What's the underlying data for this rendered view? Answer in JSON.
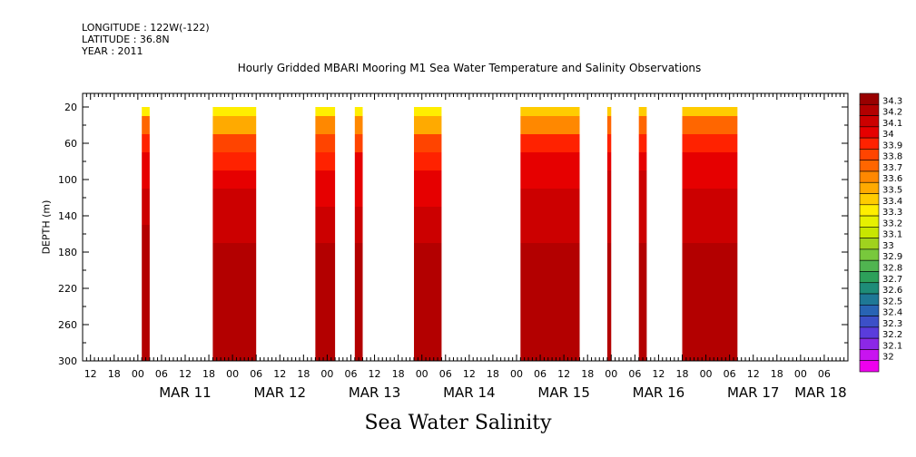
{
  "header": {
    "longitude": "LONGITUDE : 122W(-122)",
    "latitude": "LATITUDE : 36.8N",
    "year": "YEAR : 2011"
  },
  "footer": "Sea Water Salinity",
  "chart_data": {
    "type": "heatmap",
    "title": "Hourly Gridded MBARI Mooring M1 Sea Water Temperature and Salinity Observations",
    "xlabel": "",
    "ylabel": "DEPTH (m)",
    "xlim": [
      "2011-03-10T10:00",
      "2011-03-18T12:00"
    ],
    "ylim": [
      300,
      5
    ],
    "x_tick_labels": [
      "12",
      "18",
      "00",
      "06",
      "12",
      "18",
      "00",
      "06",
      "12",
      "18",
      "00",
      "06",
      "12",
      "18",
      "00",
      "06",
      "12",
      "18",
      "00",
      "06",
      "12",
      "18",
      "00",
      "06",
      "12",
      "18",
      "00",
      "06",
      "12",
      "18",
      "00",
      "06"
    ],
    "x_date_labels": [
      "MAR 11",
      "MAR 12",
      "MAR 13",
      "MAR 14",
      "MAR 15",
      "MAR 16",
      "MAR 17",
      "MAR 18"
    ],
    "y_tick_labels": [
      "20",
      "60",
      "100",
      "140",
      "180",
      "220",
      "260",
      "300"
    ],
    "colorbar": {
      "labels": [
        "34.3",
        "34.2",
        "34.1",
        "34",
        "33.9",
        "33.8",
        "33.7",
        "33.6",
        "33.5",
        "33.4",
        "33.3",
        "33.2",
        "33.1",
        "33",
        "32.9",
        "32.8",
        "32.7",
        "32.6",
        "32.5",
        "32.4",
        "32.3",
        "32.2",
        "32.1",
        "32"
      ],
      "colors": [
        "#990000",
        "#b30000",
        "#cc0000",
        "#e60000",
        "#ff2200",
        "#ff4400",
        "#ff6600",
        "#ff8800",
        "#ffaa00",
        "#ffcc00",
        "#ffee00",
        "#e6f000",
        "#c8e600",
        "#a0d21e",
        "#78c83c",
        "#50b450",
        "#2da05a",
        "#1e8c78",
        "#1e7896",
        "#2864b4",
        "#3c50c8",
        "#5a3cdc",
        "#8c28e6",
        "#c814f0",
        "#ee00ee"
      ]
    },
    "depths": [
      20,
      40,
      60,
      80,
      100,
      120,
      140,
      160,
      180,
      200,
      220,
      240,
      260,
      280,
      300
    ],
    "segments": [
      {
        "x_start": "2011-03-11T01:00",
        "x_end": "2011-03-11T03:00",
        "profile": [
          33.35,
          33.75,
          33.95,
          34.05,
          34.08,
          34.12,
          34.15,
          34.2,
          34.2,
          34.21,
          34.23,
          34.28,
          34.28,
          34.27,
          34.2
        ]
      },
      {
        "x_start": "2011-03-11T19:00",
        "x_end": "2011-03-12T06:00",
        "profile": [
          33.35,
          33.55,
          33.82,
          33.97,
          34.07,
          34.1,
          34.15,
          34.19,
          34.2,
          34.21,
          34.23,
          34.28,
          34.29,
          34.28,
          34.22
        ]
      },
      {
        "x_start": "2011-03-12T21:00",
        "x_end": "2011-03-13T02:00",
        "profile": [
          33.35,
          33.65,
          33.88,
          33.97,
          34.02,
          34.05,
          34.12,
          34.18,
          34.2,
          34.21,
          34.23,
          34.28,
          34.28,
          34.27,
          34.21
        ]
      },
      {
        "x_start": "2011-03-13T07:00",
        "x_end": "2011-03-13T09:00",
        "profile": [
          33.35,
          33.6,
          33.87,
          34.0,
          34.05,
          34.08,
          34.13,
          34.18,
          34.2,
          34.21,
          34.23,
          34.28,
          34.28,
          34.27,
          34.21
        ]
      },
      {
        "x_start": "2011-03-13T22:00",
        "x_end": "2011-03-14T05:00",
        "profile": [
          33.35,
          33.55,
          33.8,
          33.92,
          34.02,
          34.07,
          34.12,
          34.18,
          34.2,
          34.21,
          34.23,
          34.28,
          34.28,
          34.27,
          34.22
        ]
      },
      {
        "x_start": "2011-03-15T01:00",
        "x_end": "2011-03-15T16:00",
        "profile": [
          33.4,
          33.68,
          33.9,
          34.0,
          34.08,
          34.11,
          34.14,
          34.18,
          34.2,
          34.21,
          34.22,
          34.28,
          34.29,
          34.28,
          34.22
        ]
      },
      {
        "x_start": "2011-03-15T23:00",
        "x_end": "2011-03-16T00:00",
        "profile": [
          33.4,
          33.75,
          33.95,
          34.05,
          34.1,
          34.13,
          34.15,
          34.19,
          34.2,
          34.21,
          34.22,
          34.28,
          34.28,
          34.27,
          34.22
        ]
      },
      {
        "x_start": "2011-03-16T07:00",
        "x_end": "2011-03-16T09:00",
        "profile": [
          33.4,
          33.75,
          33.95,
          34.05,
          34.1,
          34.13,
          34.15,
          34.19,
          34.2,
          34.21,
          34.22,
          34.28,
          34.28,
          34.27,
          34.22
        ]
      },
      {
        "x_start": "2011-03-16T18:00",
        "x_end": "2011-03-17T08:00",
        "profile": [
          33.4,
          33.75,
          33.95,
          34.03,
          34.08,
          34.1,
          34.13,
          34.18,
          34.2,
          34.21,
          34.22,
          34.28,
          34.29,
          34.28,
          34.22
        ]
      }
    ]
  }
}
